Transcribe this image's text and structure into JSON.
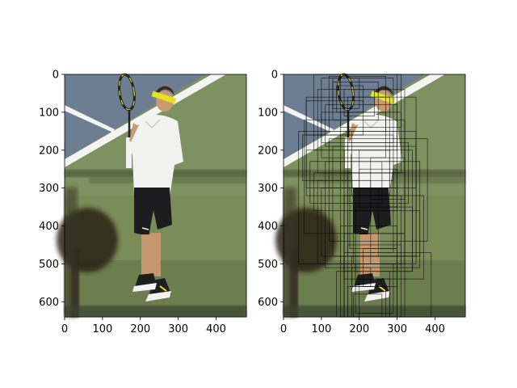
{
  "chart_data": [
    {
      "type": "image",
      "content": "tennis player holding racket on court",
      "xlim": [
        0,
        480
      ],
      "ylim": [
        640,
        0
      ],
      "x_ticks": [
        0,
        100,
        200,
        300,
        400
      ],
      "y_ticks": [
        0,
        100,
        200,
        300,
        400,
        500,
        600
      ]
    },
    {
      "type": "image",
      "content": "same tennis photo overlaid with many rectangular bounding boxes",
      "xlim": [
        0,
        480
      ],
      "ylim": [
        640,
        0
      ],
      "x_ticks": [
        0,
        100,
        200,
        300,
        400
      ],
      "y_ticks": [
        0,
        100,
        200,
        300,
        400,
        500,
        600
      ],
      "box_color": "#000000",
      "boxes": [
        [
          80,
          0,
          300,
          200
        ],
        [
          100,
          10,
          290,
          180
        ],
        [
          120,
          5,
          270,
          150
        ],
        [
          60,
          60,
          350,
          300
        ],
        [
          90,
          40,
          320,
          260
        ],
        [
          150,
          0,
          310,
          140
        ],
        [
          130,
          20,
          250,
          120
        ],
        [
          140,
          30,
          210,
          100
        ],
        [
          160,
          40,
          240,
          110
        ],
        [
          110,
          80,
          300,
          190
        ],
        [
          100,
          100,
          270,
          220
        ],
        [
          170,
          60,
          280,
          200
        ],
        [
          150,
          100,
          310,
          260
        ],
        [
          180,
          150,
          300,
          320
        ],
        [
          170,
          180,
          330,
          340
        ],
        [
          120,
          170,
          380,
          440
        ],
        [
          130,
          190,
          350,
          480
        ],
        [
          160,
          200,
          340,
          520
        ],
        [
          150,
          230,
          320,
          500
        ],
        [
          110,
          230,
          360,
          510
        ],
        [
          170,
          260,
          290,
          470
        ],
        [
          175,
          300,
          300,
          460
        ],
        [
          185,
          320,
          310,
          500
        ],
        [
          160,
          320,
          370,
          540
        ],
        [
          190,
          350,
          340,
          520
        ],
        [
          170,
          360,
          360,
          480
        ],
        [
          200,
          250,
          300,
          350
        ],
        [
          200,
          200,
          280,
          300
        ],
        [
          230,
          220,
          320,
          330
        ],
        [
          55,
          120,
          320,
          420
        ],
        [
          40,
          150,
          350,
          500
        ],
        [
          50,
          160,
          290,
          280
        ],
        [
          60,
          200,
          280,
          320
        ],
        [
          70,
          230,
          260,
          340
        ],
        [
          80,
          260,
          300,
          360
        ],
        [
          90,
          280,
          230,
          500
        ],
        [
          100,
          300,
          250,
          480
        ],
        [
          150,
          400,
          300,
          640
        ],
        [
          160,
          420,
          320,
          640
        ],
        [
          170,
          450,
          310,
          640
        ],
        [
          180,
          480,
          300,
          640
        ],
        [
          190,
          500,
          290,
          630
        ],
        [
          140,
          520,
          280,
          640
        ],
        [
          200,
          540,
          280,
          640
        ],
        [
          170,
          560,
          270,
          640
        ],
        [
          185,
          580,
          260,
          640
        ],
        [
          160,
          470,
          390,
          640
        ],
        [
          180,
          510,
          230,
          560
        ],
        [
          210,
          460,
          300,
          560
        ],
        [
          60,
          70,
          210,
          160
        ],
        [
          130,
          10,
          200,
          90
        ]
      ]
    }
  ]
}
